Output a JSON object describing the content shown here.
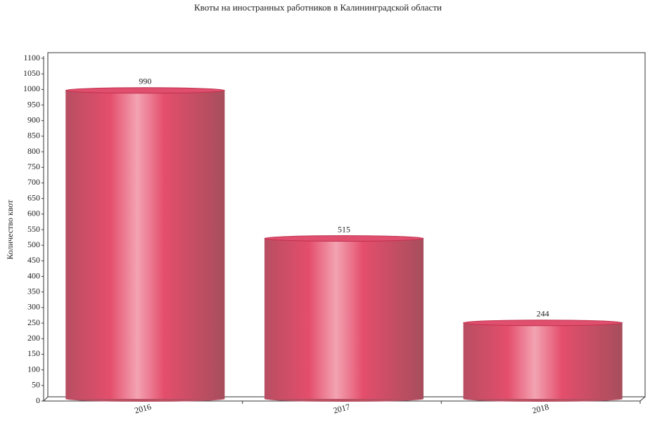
{
  "chart_data": {
    "type": "bar",
    "title": "Квоты на иностранных работников в Калининградской области",
    "ylabel": "Количество квот",
    "categories": [
      "2016",
      "2017",
      "2018"
    ],
    "values": [
      990,
      515,
      244
    ],
    "color": "#e0506e",
    "ylim": [
      0,
      1100
    ],
    "yticks": [
      0,
      50,
      100,
      150,
      200,
      250,
      300,
      350,
      400,
      450,
      500,
      550,
      600,
      650,
      700,
      750,
      800,
      850,
      900,
      950,
      1000,
      1050,
      1100
    ],
    "grid": false
  }
}
